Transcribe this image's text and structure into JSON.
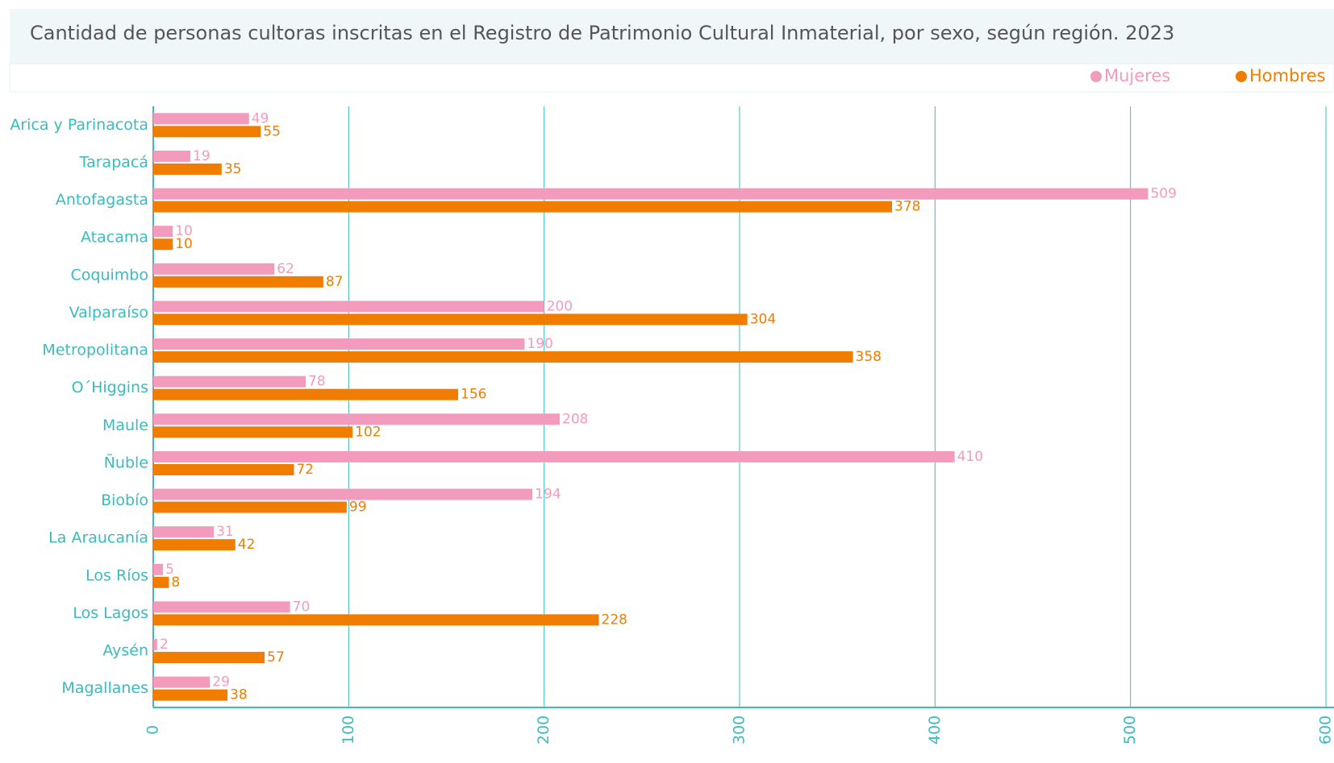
{
  "chart_data": {
    "type": "bar",
    "orientation": "horizontal",
    "title": "Cantidad de personas cultoras inscritas en el Registro de Patrimonio Cultural Inmaterial, por sexo, según región. 2023",
    "categories": [
      "Arica y Parinacota",
      "Tarapacá",
      "Antofagasta",
      "Atacama",
      "Coquimbo",
      "Valparaíso",
      "Metropolitana",
      "O´Higgins",
      "Maule",
      "Ñuble",
      "Biobío",
      "La Araucanía",
      "Los Ríos",
      "Los Lagos",
      "Aysén",
      "Magallanes"
    ],
    "series": [
      {
        "name": "Mujeres",
        "color": "#f29bbd",
        "values": [
          49,
          19,
          509,
          10,
          62,
          200,
          190,
          78,
          208,
          410,
          194,
          31,
          5,
          70,
          2,
          29
        ]
      },
      {
        "name": "Hombres",
        "color": "#f07d00",
        "values": [
          55,
          35,
          378,
          10,
          87,
          304,
          358,
          156,
          102,
          72,
          99,
          42,
          8,
          228,
          57,
          38
        ]
      }
    ],
    "xlim": [
      0,
      600
    ],
    "xticks": [
      0,
      100,
      200,
      300,
      400,
      500,
      600
    ],
    "grid": true,
    "legend": "top-right"
  }
}
